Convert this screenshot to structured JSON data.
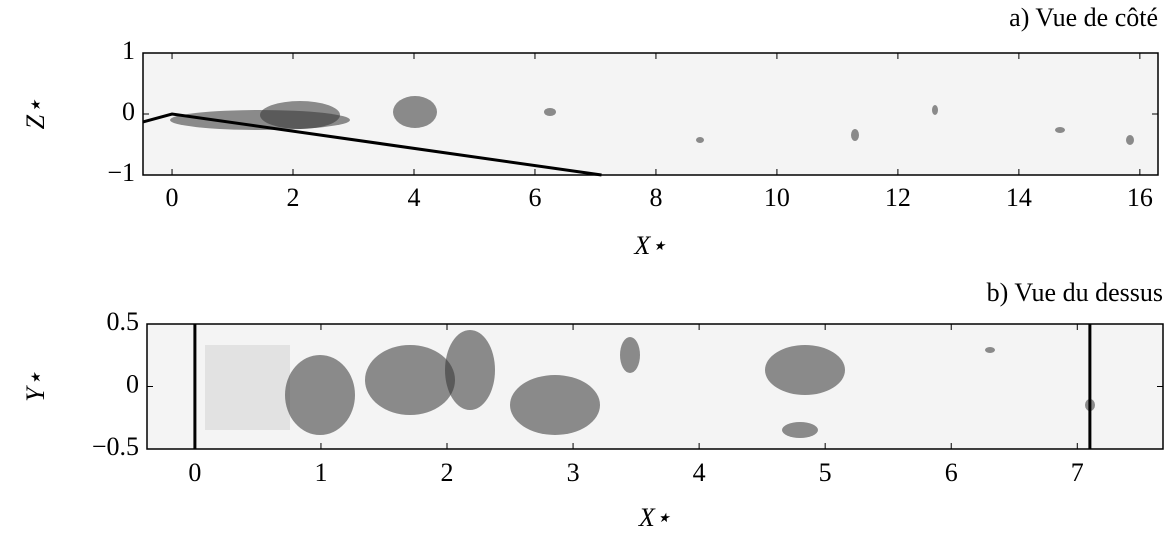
{
  "chart_data": [
    {
      "type": "image",
      "title": "a) Vue de côté",
      "xlabel": "X⋆",
      "ylabel": "Z⋆",
      "xlim": [
        -0.48,
        16.3
      ],
      "ylim": [
        -1,
        1
      ],
      "xticks": [
        0,
        2,
        4,
        6,
        8,
        10,
        12,
        14,
        16
      ],
      "yticks": [
        {
          "value": -1,
          "label": "−1"
        },
        0,
        1
      ],
      "series": [
        {
          "color": "#000000",
          "x": [
            -0.48,
            0,
            7.1
          ],
          "values": [
            -0.13,
            0,
            -1
          ]
        }
      ]
    },
    {
      "type": "image",
      "title": "b) Vue du dessus",
      "xlabel": "X⋆",
      "ylabel": "Y⋆",
      "xlim": [
        -0.38,
        7.68
      ],
      "ylim": [
        -0.5,
        0.5
      ],
      "xticks": [
        0,
        1,
        2,
        3,
        4,
        5,
        6,
        7
      ],
      "yticks": [
        {
          "value": -0.5,
          "label": "−0.5"
        },
        0,
        0.5
      ],
      "series": [
        {
          "color": "#000000",
          "x": [
            0,
            0
          ],
          "values": [
            -0.5,
            0.5
          ]
        },
        {
          "color": "#000000",
          "x": [
            7.1,
            7.1
          ],
          "values": [
            -0.5,
            0.5
          ]
        }
      ]
    }
  ]
}
